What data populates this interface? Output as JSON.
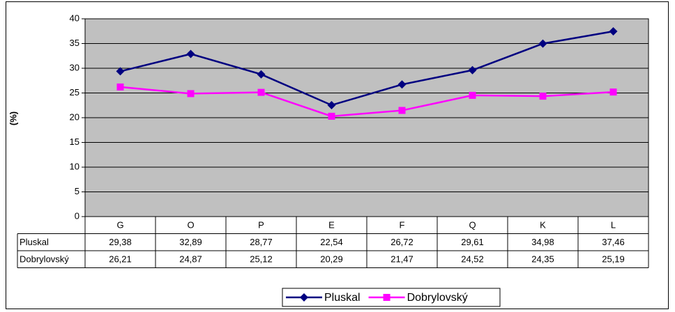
{
  "chart_data": {
    "type": "line",
    "y_label": "(%)",
    "categories": [
      "G",
      "O",
      "P",
      "E",
      "F",
      "Q",
      "K",
      "L"
    ],
    "series": [
      {
        "name": "Pluskal",
        "color": "#000080",
        "marker": "diamond",
        "values": [
          29.38,
          32.89,
          28.77,
          22.54,
          26.72,
          29.61,
          34.98,
          37.46
        ],
        "value_labels": [
          "29,38",
          "32,89",
          "28,77",
          "22,54",
          "26,72",
          "29,61",
          "34,98",
          "37,46"
        ]
      },
      {
        "name": "Dobrylovský",
        "color": "#ff00ff",
        "marker": "square",
        "values": [
          26.21,
          24.87,
          25.12,
          20.29,
          21.47,
          24.52,
          24.35,
          25.19
        ],
        "value_labels": [
          "26,21",
          "24,87",
          "25,12",
          "20,29",
          "21,47",
          "24,52",
          "24,35",
          "25,19"
        ]
      }
    ],
    "ylim": [
      0,
      40
    ],
    "yticks": [
      0,
      5,
      10,
      15,
      20,
      25,
      30,
      35,
      40
    ],
    "grid": true,
    "plot_background": "#c0c0c0",
    "legend": "bottom"
  }
}
